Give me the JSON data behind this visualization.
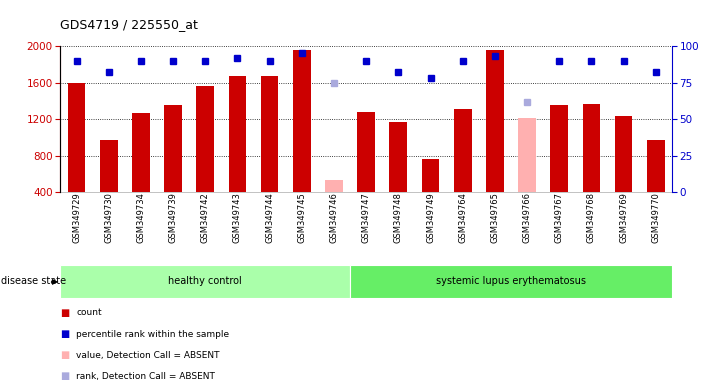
{
  "title": "GDS4719 / 225550_at",
  "samples": [
    "GSM349729",
    "GSM349730",
    "GSM349734",
    "GSM349739",
    "GSM349742",
    "GSM349743",
    "GSM349744",
    "GSM349745",
    "GSM349746",
    "GSM349747",
    "GSM349748",
    "GSM349749",
    "GSM349764",
    "GSM349765",
    "GSM349766",
    "GSM349767",
    "GSM349768",
    "GSM349769",
    "GSM349770"
  ],
  "counts": [
    1600,
    975,
    1270,
    1350,
    1560,
    1670,
    1670,
    1960,
    null,
    1275,
    1165,
    760,
    1310,
    1960,
    null,
    1350,
    1370,
    1235,
    975
  ],
  "absent_counts": [
    null,
    null,
    null,
    null,
    null,
    null,
    null,
    null,
    530,
    null,
    null,
    null,
    null,
    null,
    1210,
    null,
    null,
    null,
    null
  ],
  "percentile_ranks": [
    90,
    82,
    90,
    90,
    90,
    92,
    90,
    95,
    null,
    90,
    82,
    78,
    90,
    93,
    null,
    90,
    90,
    90,
    82
  ],
  "absent_ranks": [
    null,
    null,
    null,
    null,
    null,
    null,
    null,
    null,
    75,
    null,
    null,
    null,
    null,
    null,
    62,
    null,
    null,
    null,
    null
  ],
  "group": [
    "healthy control",
    "healthy control",
    "healthy control",
    "healthy control",
    "healthy control",
    "healthy control",
    "healthy control",
    "healthy control",
    "healthy control",
    "systemic lupus erythematosus",
    "systemic lupus erythematosus",
    "systemic lupus erythematosus",
    "systemic lupus erythematosus",
    "systemic lupus erythematosus",
    "systemic lupus erythematosus",
    "systemic lupus erythematosus",
    "systemic lupus erythematosus",
    "systemic lupus erythematosus",
    "systemic lupus erythematosus"
  ],
  "ylim_left": [
    400,
    2000
  ],
  "ylim_right": [
    0,
    100
  ],
  "yticks_left": [
    400,
    800,
    1200,
    1600,
    2000
  ],
  "yticks_right": [
    0,
    25,
    50,
    75,
    100
  ],
  "bar_color": "#cc0000",
  "absent_bar_color": "#ffb0b0",
  "rank_color": "#0000cc",
  "absent_rank_color": "#aaaadd",
  "bg_color": "#ffffff",
  "group_colors": {
    "healthy control": "#aaffaa",
    "systemic lupus erythematosus": "#66ee66"
  },
  "disease_state_label": "disease state",
  "legend": [
    {
      "label": "count",
      "color": "#cc0000"
    },
    {
      "label": "percentile rank within the sample",
      "color": "#0000cc"
    },
    {
      "label": "value, Detection Call = ABSENT",
      "color": "#ffb0b0"
    },
    {
      "label": "rank, Detection Call = ABSENT",
      "color": "#aaaadd"
    }
  ]
}
